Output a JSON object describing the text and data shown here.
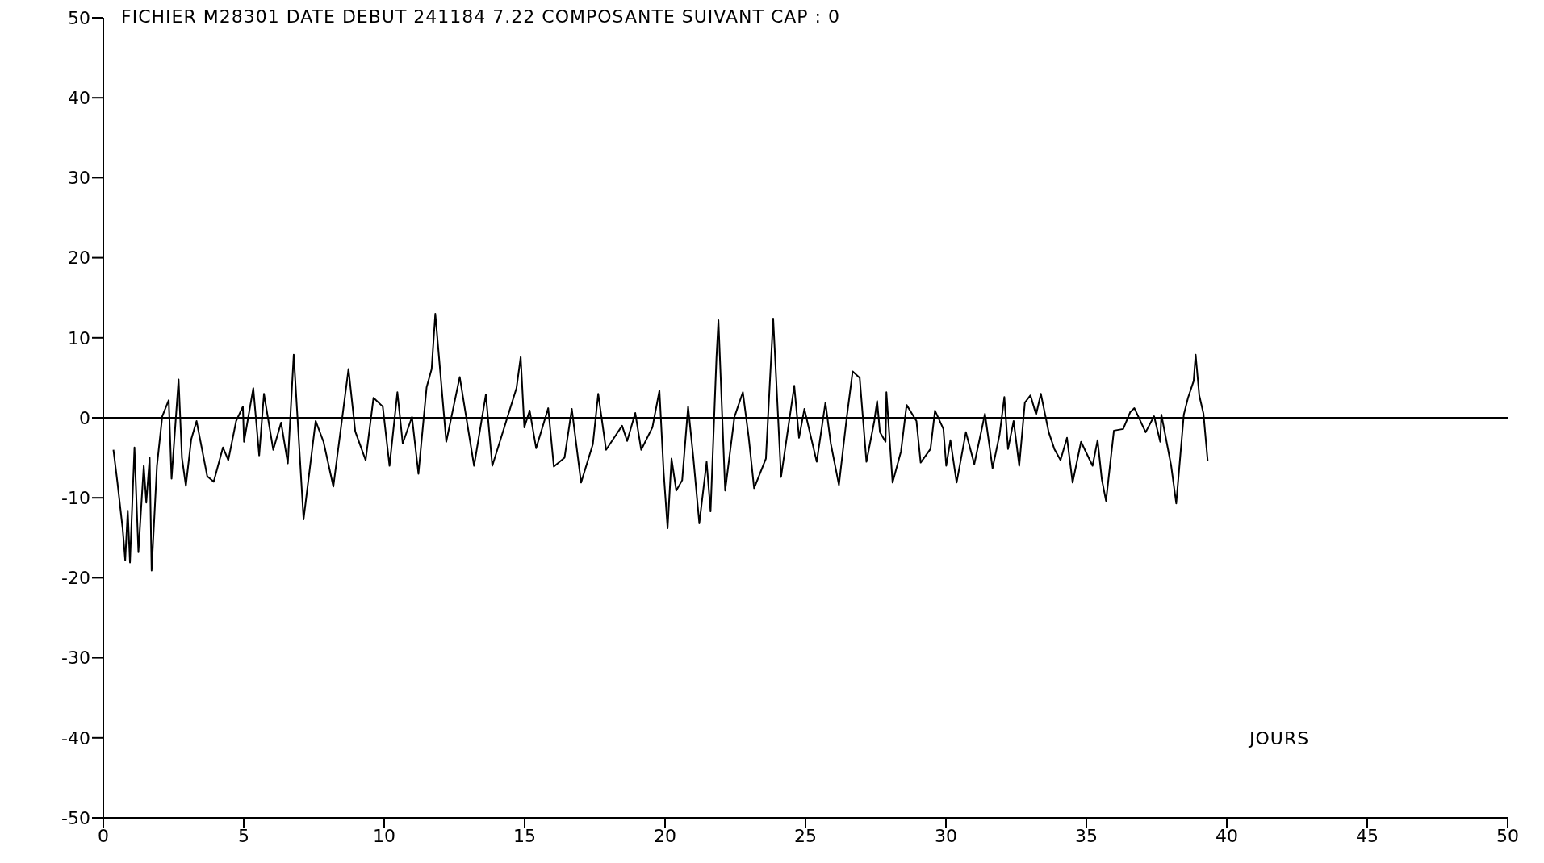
{
  "chart_data": {
    "type": "line",
    "title": "FICHIER M28301 DATE DEBUT 241184  7.22 COMPOSANTE SUIVANT CAP : 0",
    "xlabel": "JOURS",
    "xlim": [
      0,
      50
    ],
    "xticks": [
      0,
      5,
      10,
      15,
      20,
      25,
      30,
      35,
      40,
      45,
      50
    ],
    "ylim": [
      -50,
      50
    ],
    "yticks": [
      -50,
      -40,
      -30,
      -20,
      -10,
      0,
      10,
      20,
      30,
      40,
      50
    ],
    "grid": false,
    "marker": "none",
    "line_style": "solid",
    "ref_lines": [
      {
        "axis": "y",
        "value": 0,
        "color": "#000000"
      }
    ],
    "series": [
      {
        "color": "#000000",
        "x": [
          0.36,
          0.5,
          0.69,
          0.78,
          0.87,
          0.95,
          1.11,
          1.25,
          1.44,
          1.53,
          1.65,
          1.72,
          1.91,
          2.1,
          2.33,
          2.43,
          2.68,
          2.8,
          2.94,
          3.13,
          3.32,
          3.7,
          3.93,
          4.26,
          4.45,
          4.73,
          4.97,
          5.01,
          5.34,
          5.55,
          5.72,
          6.05,
          6.33,
          6.57,
          6.78,
          7.13,
          7.56,
          7.84,
          8.19,
          8.73,
          8.97,
          9.34,
          9.62,
          9.95,
          10.19,
          10.47,
          10.66,
          10.99,
          11.22,
          11.51,
          11.69,
          11.82,
          12.21,
          12.69,
          13.2,
          13.62,
          13.85,
          14.71,
          14.86,
          14.99,
          15.18,
          15.41,
          15.84,
          16.04,
          16.42,
          16.68,
          17.01,
          17.43,
          17.62,
          17.9,
          18.47,
          18.65,
          18.94,
          19.15,
          19.55,
          19.8,
          19.95,
          20.09,
          20.23,
          20.4,
          20.61,
          20.82,
          21.01,
          21.22,
          21.48,
          21.62,
          21.83,
          21.9,
          22.14,
          22.47,
          22.77,
          22.98,
          23.17,
          23.59,
          23.85,
          24.13,
          24.6,
          24.77,
          24.96,
          25.4,
          25.71,
          25.9,
          26.19,
          26.47,
          26.68,
          26.93,
          27.17,
          27.45,
          27.55,
          27.65,
          27.85,
          27.88,
          28.1,
          28.4,
          28.6,
          28.95,
          29.1,
          29.45,
          29.61,
          29.91,
          30.01,
          30.16,
          30.38,
          30.71,
          31.01,
          31.39,
          31.66,
          31.91,
          32.08,
          32.21,
          32.41,
          32.61,
          32.81,
          33.01,
          33.21,
          33.38,
          33.66,
          33.86,
          34.08,
          34.31,
          34.51,
          34.81,
          35.22,
          35.4,
          35.55,
          35.7,
          35.98,
          36.31,
          36.56,
          36.71,
          37.11,
          37.41,
          37.63,
          37.67,
          38.02,
          38.2,
          38.47,
          38.62,
          38.82,
          38.89,
          39.02,
          39.17,
          39.32
        ],
        "values": [
          -4,
          -8,
          -13.9,
          -17.8,
          -11.6,
          -18.1,
          -3.7,
          -16.8,
          -6,
          -10.6,
          -5,
          -19.1,
          -6,
          0.2,
          2.2,
          -7.6,
          4.8,
          -5,
          -8.5,
          -2.7,
          -0.4,
          -7.3,
          -8,
          -3.7,
          -5.3,
          -0.4,
          1.4,
          -3,
          3.7,
          -4.7,
          3,
          -4,
          -0.6,
          -5.7,
          7.9,
          -12.7,
          -0.4,
          -3,
          -8.6,
          6.1,
          -1.7,
          -5.3,
          2.5,
          1.4,
          -6,
          3.2,
          -3.2,
          0.1,
          -7,
          3.8,
          6.1,
          13,
          -3,
          5.1,
          -6,
          2.9,
          -6,
          3.7,
          7.6,
          -1.2,
          0.9,
          -3.8,
          1.2,
          -6.1,
          -5,
          1.1,
          -8.1,
          -3.3,
          3,
          -4,
          -1,
          -2.9,
          0.6,
          -4,
          -1.2,
          3.4,
          -6.8,
          -13.8,
          -5.1,
          -9.1,
          -7.8,
          1.4,
          -5.1,
          -13.2,
          -5.5,
          -11.7,
          7.5,
          12.2,
          -9.1,
          0.1,
          3.2,
          -2.5,
          -8.8,
          -5.1,
          12.4,
          -7.4,
          4,
          -2.5,
          1.1,
          -5.5,
          1.9,
          -3.2,
          -8.4,
          0.1,
          5.8,
          5,
          -5.5,
          -0.4,
          2.1,
          -1.8,
          -3,
          3.2,
          -8.1,
          -4.2,
          1.6,
          -0.4,
          -5.6,
          -3.9,
          0.9,
          -1.4,
          -6,
          -2.8,
          -8.1,
          -1.8,
          -5.8,
          0.5,
          -6.3,
          -2.1,
          2.6,
          -3.9,
          -0.4,
          -6,
          1.9,
          2.8,
          0.4,
          3,
          -1.8,
          -3.9,
          -5.3,
          -2.5,
          -8.1,
          -3,
          -6,
          -2.8,
          -7.7,
          -10.4,
          -1.6,
          -1.4,
          0.7,
          1.2,
          -1.8,
          0.2,
          -3,
          0.4,
          -6,
          -10.7,
          0.4,
          2.5,
          4.6,
          7.9,
          2.8,
          0.5,
          -5.4
        ]
      }
    ]
  }
}
